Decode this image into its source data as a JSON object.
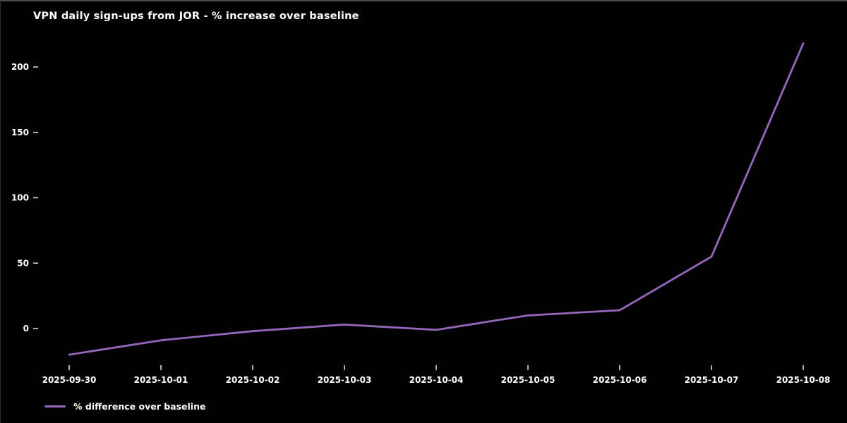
{
  "chart_data": {
    "type": "line",
    "title": "VPN daily sign-ups from JOR - % increase over baseline",
    "categories": [
      "2025-09-30",
      "2025-10-01",
      "2025-10-02",
      "2025-10-03",
      "2025-10-04",
      "2025-10-05",
      "2025-10-06",
      "2025-10-07",
      "2025-10-08"
    ],
    "series": [
      {
        "name": "% difference over baseline",
        "values": [
          -20,
          -9,
          -2,
          3,
          -1,
          10,
          14,
          55,
          218
        ],
        "color": "#9467bd"
      }
    ],
    "xlabel": "",
    "ylabel": "",
    "yticks": [
      0,
      50,
      100,
      150,
      200
    ],
    "ylim": [
      -35,
      235
    ],
    "grid": false,
    "legend_position": "lower-left",
    "background_color": "#000000",
    "text_color": "#ffffff",
    "tick_color": "#d9d9d9"
  }
}
